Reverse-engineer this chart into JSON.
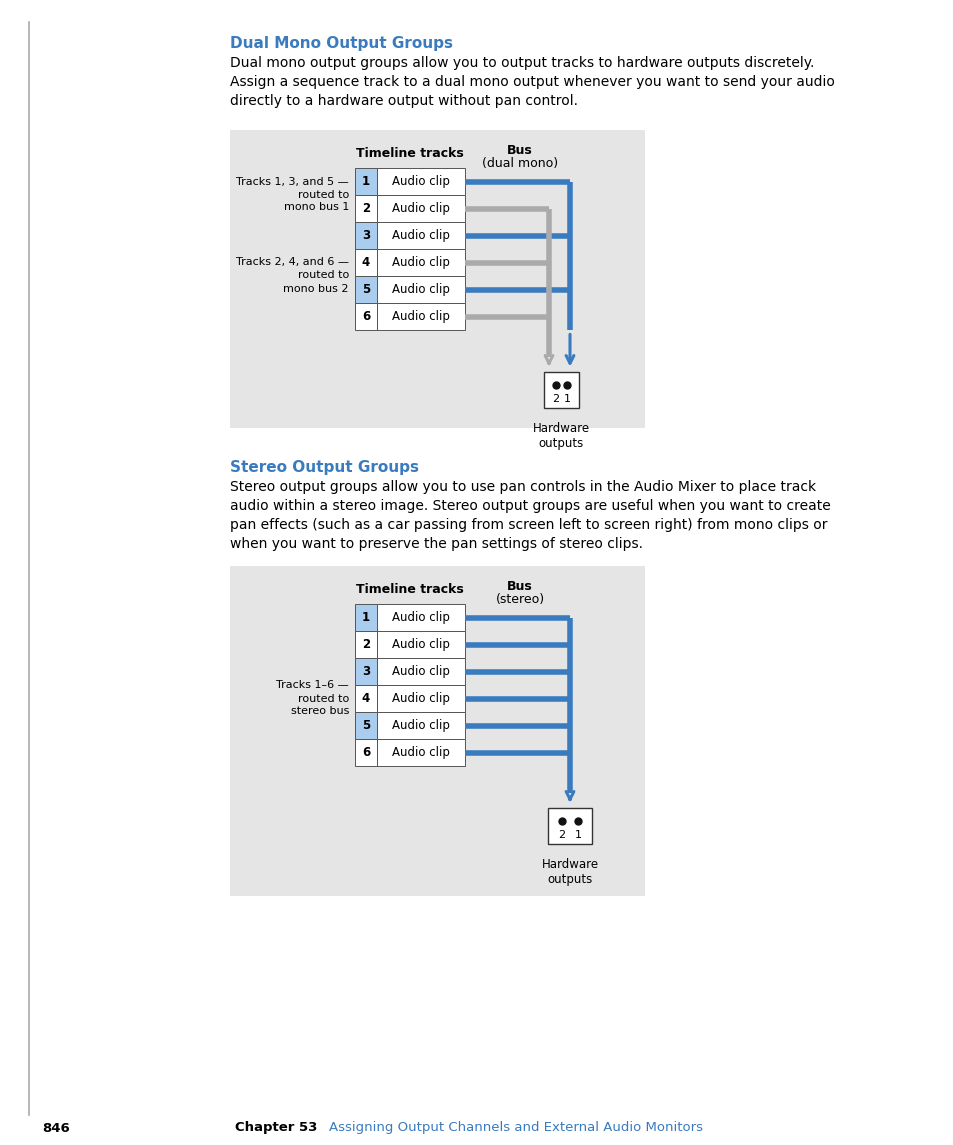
{
  "page_bg": "#ffffff",
  "diagram_bg": "#e5e5e5",
  "blue_color": "#3a7bbf",
  "gray_color": "#aaaaaa",
  "track_num_bg_blue": "#aaccee",
  "track_border": "#555555",
  "text_color": "#000000",
  "heading1_color": "#3a7bbf",
  "heading2_color": "#3a7bbf",
  "heading1": "Dual Mono Output Groups",
  "heading2": "Stereo Output Groups",
  "para1_lines": [
    "Dual mono output groups allow you to output tracks to hardware outputs discretely.",
    "Assign a sequence track to a dual mono output whenever you want to send your audio",
    "directly to a hardware output without pan control."
  ],
  "para2_lines": [
    "Stereo output groups allow you to use pan controls in the Audio Mixer to place track",
    "audio within a stereo image. Stereo output groups are useful when you want to create",
    "pan effects (such as a car passing from screen left to screen right) from mono clips or",
    "when you want to preserve the pan settings of stereo clips."
  ],
  "label_timeline": "Timeline tracks",
  "label_bus1_line1": "Bus",
  "label_bus1_line2": "(dual mono)",
  "label_bus2_line1": "Bus",
  "label_bus2_line2": "(stereo)",
  "label_hw": "Hardware\noutputs",
  "tracks": [
    "1",
    "2",
    "3",
    "4",
    "5",
    "6"
  ],
  "clip_label": "Audio clip",
  "diag1_label1_lines": [
    "Tracks 1, 3, and 5 —",
    "routed to",
    "mono bus 1"
  ],
  "diag1_label2_lines": [
    "Tracks 2, 4, and 6 —",
    "routed to",
    "mono bus 2"
  ],
  "diag2_label_lines": [
    "Tracks 1–6 —",
    "routed to",
    "stereo bus"
  ],
  "footer_chapter": "Chapter 53",
  "footer_text": "Assigning Output Channels and External Audio Monitors",
  "footer_page": "846"
}
